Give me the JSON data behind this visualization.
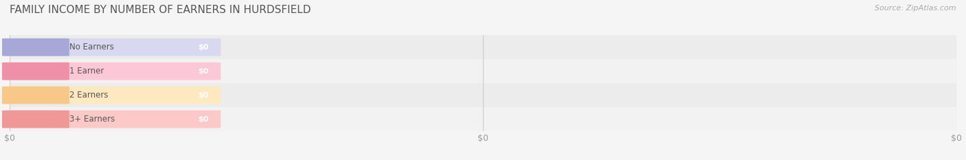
{
  "title": "FAMILY INCOME BY NUMBER OF EARNERS IN HURDSFIELD",
  "source": "Source: ZipAtlas.com",
  "categories": [
    "No Earners",
    "1 Earner",
    "2 Earners",
    "3+ Earners"
  ],
  "values": [
    0,
    0,
    0,
    0
  ],
  "bar_colors": [
    "#a8a8d8",
    "#f090a8",
    "#f8c888",
    "#f09898"
  ],
  "bar_light_colors": [
    "#d8d8f0",
    "#fcc8d8",
    "#fde8c0",
    "#fcc8c8"
  ],
  "tick_label_color": "#999999",
  "title_color": "#555555",
  "source_color": "#aaaaaa",
  "bg_color": "#f5f5f5",
  "row_colors": [
    "#ececec",
    "#f2f2f2",
    "#ececec",
    "#f2f2f2"
  ],
  "value_labels": [
    "$0",
    "$0",
    "$0",
    "$0"
  ],
  "x_tick_labels": [
    "$0",
    "$0",
    "$0"
  ],
  "figsize": [
    14.06,
    2.33
  ],
  "dpi": 100
}
